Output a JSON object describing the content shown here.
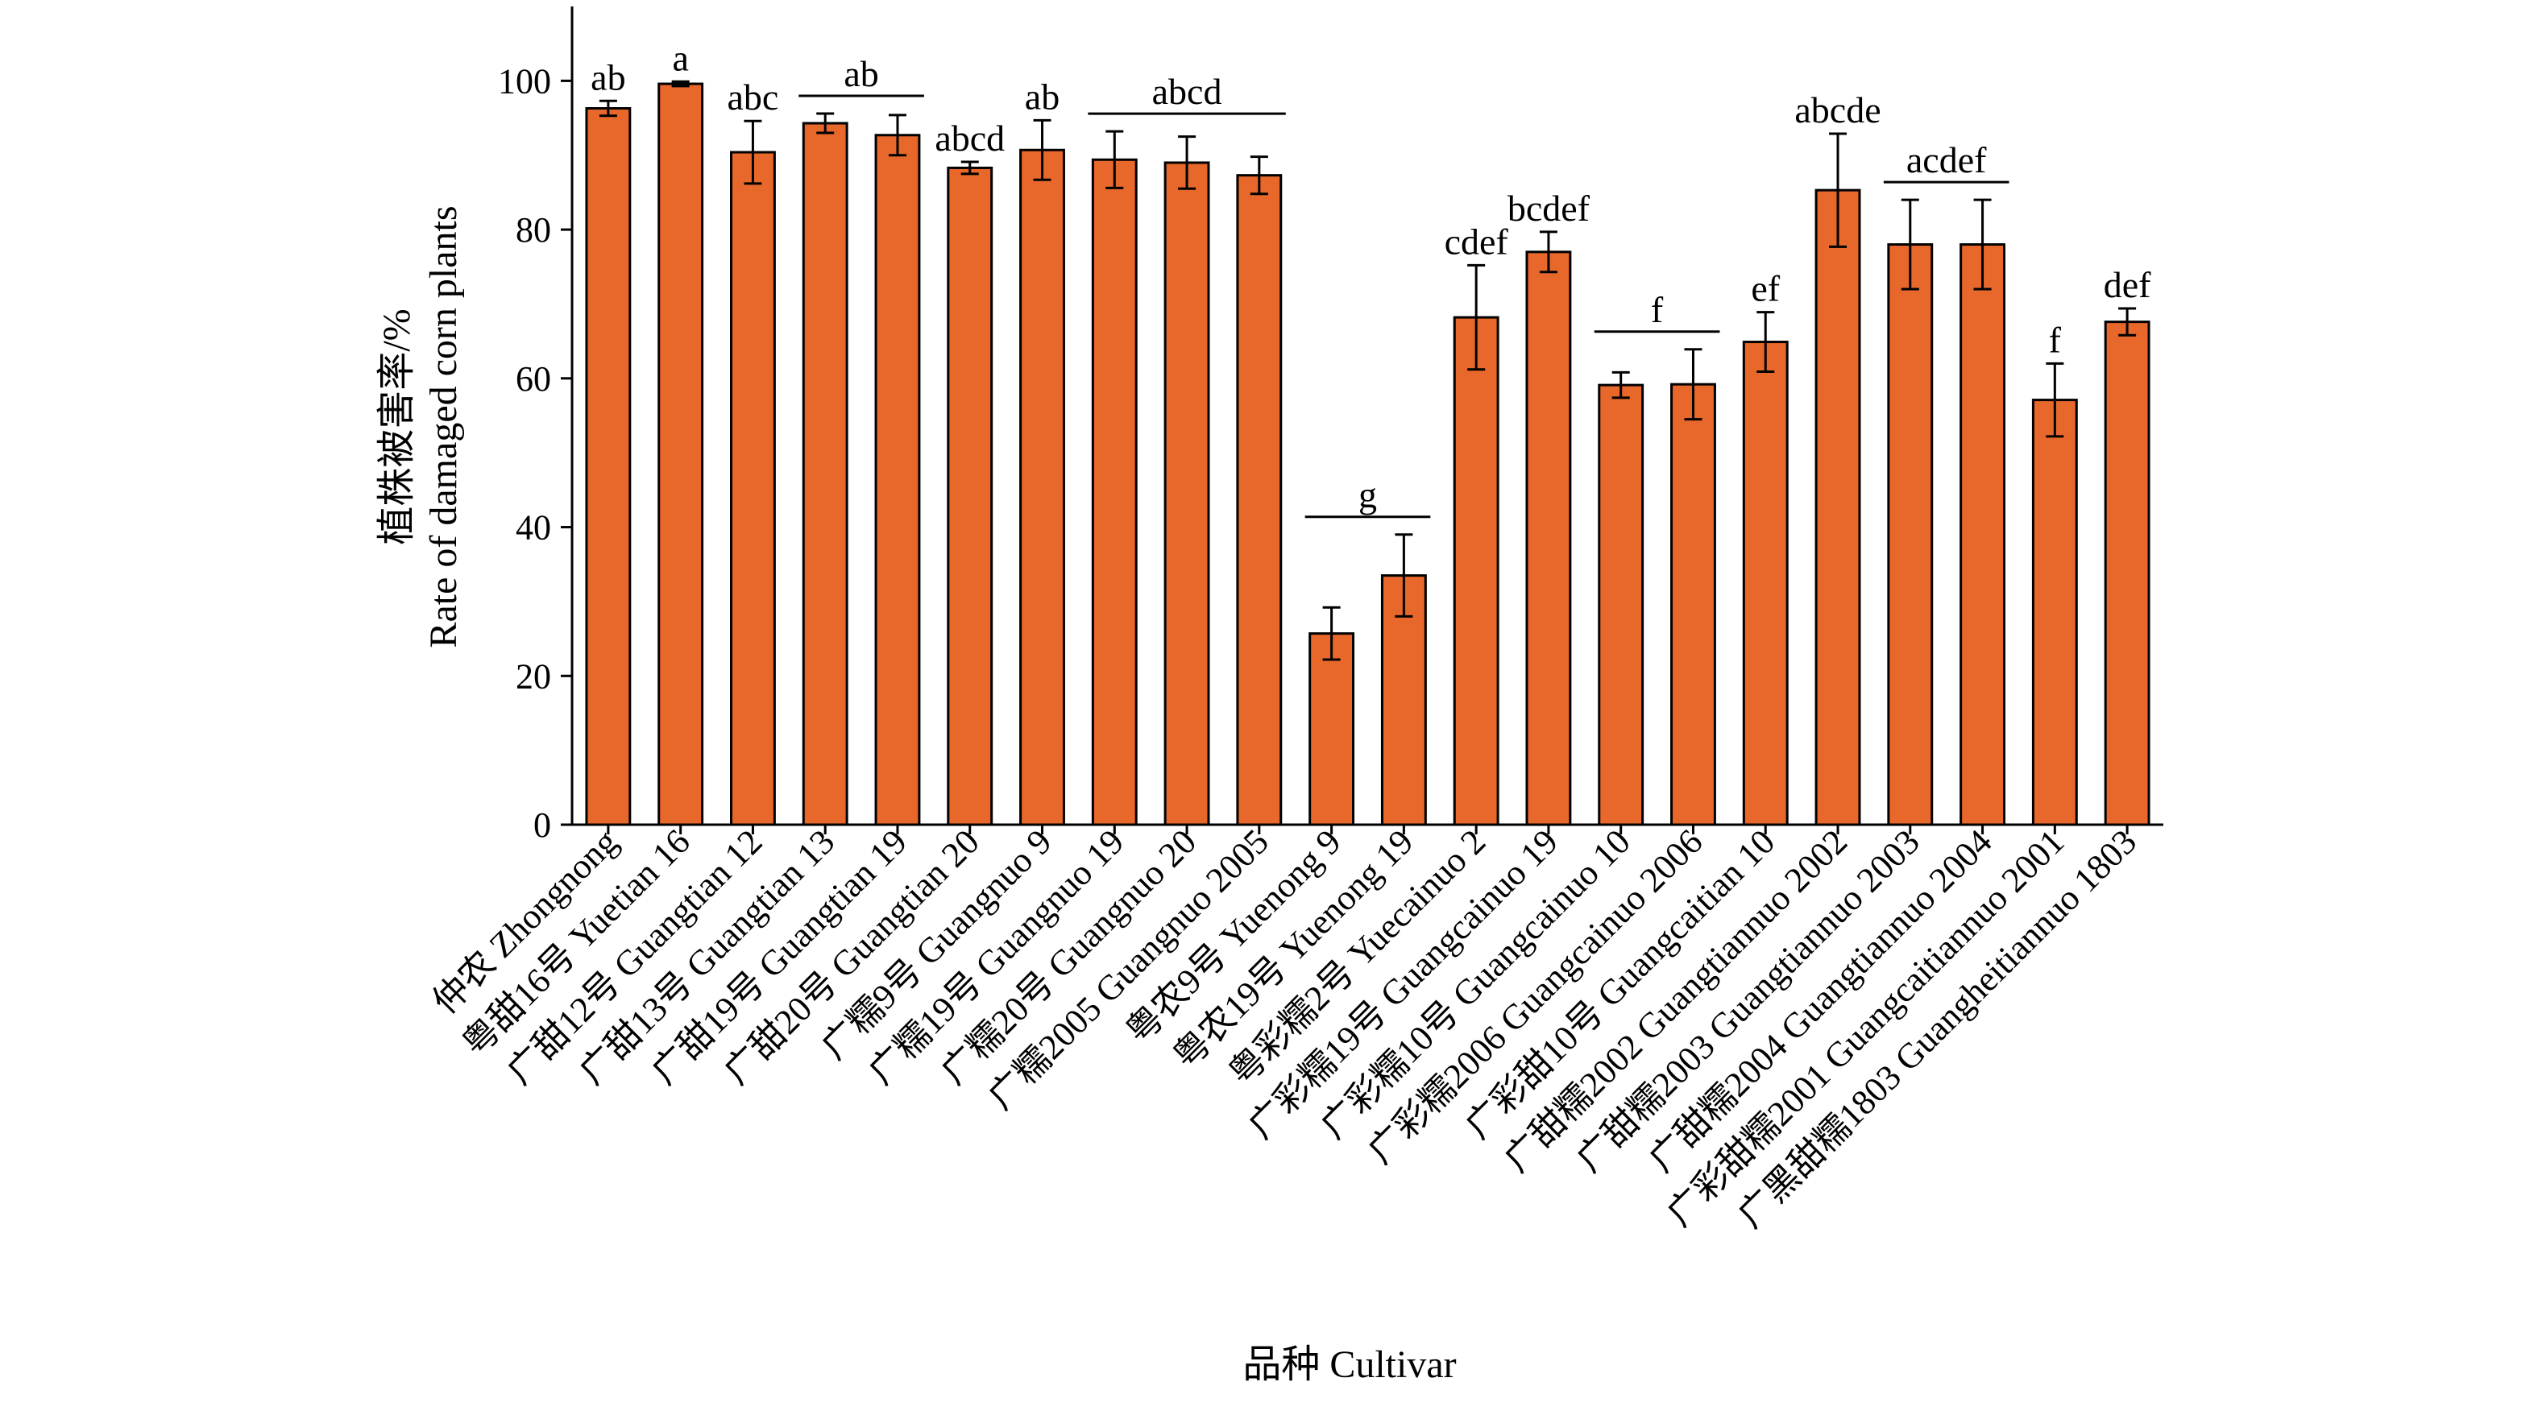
{
  "chart_data": {
    "type": "bar",
    "xlabel": "品种 Cultivar",
    "ylabel_lines": [
      "植株被害率/%",
      "Rate of damaged corn plants"
    ],
    "ylim": [
      0,
      110
    ],
    "yticks": [
      0,
      20,
      40,
      60,
      80,
      100
    ],
    "grid": false,
    "legend": "none",
    "bar_color": "#E8672A",
    "bar_edge_color": "#000000",
    "categories": [
      "仲农 Zhongnong",
      "粤甜16号 Yuetian 16",
      "广甜12号 Guangtian 12",
      "广甜13号 Guangtian 13",
      "广甜19号 Guangtian 19",
      "广甜20号 Guangtian 20",
      "广糯9号 Guangnuo 9",
      "广糯19号 Guangnuo 19",
      "广糯20号 Guangnuo 20",
      "广糯2005 Guangnuo 2005",
      "粤农9号 Yuenong 9",
      "粤农19号 Yuenong 19",
      "粤彩糯2号 Yuecainuo 2",
      "广彩糯19号 Guangcainuo 19",
      "广彩糯10号 Guangcainuo 10",
      "广彩糯2006 Guangcainuo 2006",
      "广彩甜10号 Guangcaitian 10",
      "广甜糯2002 Guangtiannuo 2002",
      "广甜糯2003 Guangtiannuo 2003",
      "广甜糯2004 Guangtiannuo 2004",
      "广彩甜糯2001 Guangcaitiannuo 2001",
      "广黑甜糯1803 Guangheitiannuo 1803"
    ],
    "values": [
      96.3,
      99.6,
      90.4,
      94.3,
      92.7,
      88.3,
      90.7,
      89.4,
      89.0,
      87.3,
      25.7,
      33.5,
      68.2,
      77.0,
      59.1,
      59.2,
      64.9,
      85.3,
      78.0,
      78.0,
      57.1,
      67.6
    ],
    "errors": [
      1.0,
      0.3,
      4.2,
      1.3,
      2.7,
      0.8,
      4.0,
      3.8,
      3.5,
      2.5,
      3.5,
      5.5,
      7.0,
      2.7,
      1.7,
      4.7,
      4.0,
      7.6,
      6.0,
      6.0,
      4.9,
      1.8
    ],
    "significance": [
      {
        "label": "ab",
        "from": 0,
        "to": 0
      },
      {
        "label": "a",
        "from": 1,
        "to": 1
      },
      {
        "label": "abc",
        "from": 2,
        "to": 2
      },
      {
        "label": "ab",
        "from": 3,
        "to": 4
      },
      {
        "label": "abcd",
        "from": 5,
        "to": 5
      },
      {
        "label": "ab",
        "from": 6,
        "to": 6
      },
      {
        "label": "abcd",
        "from": 7,
        "to": 9
      },
      {
        "label": "g",
        "from": 10,
        "to": 11
      },
      {
        "label": "cdef",
        "from": 12,
        "to": 12
      },
      {
        "label": "bcdef",
        "from": 13,
        "to": 13
      },
      {
        "label": "f",
        "from": 14,
        "to": 15
      },
      {
        "label": "ef",
        "from": 16,
        "to": 16
      },
      {
        "label": "abcde",
        "from": 17,
        "to": 17
      },
      {
        "label": "acdef",
        "from": 18,
        "to": 19
      },
      {
        "label": "f",
        "from": 20,
        "to": 20
      },
      {
        "label": "def",
        "from": 21,
        "to": 21
      }
    ]
  }
}
